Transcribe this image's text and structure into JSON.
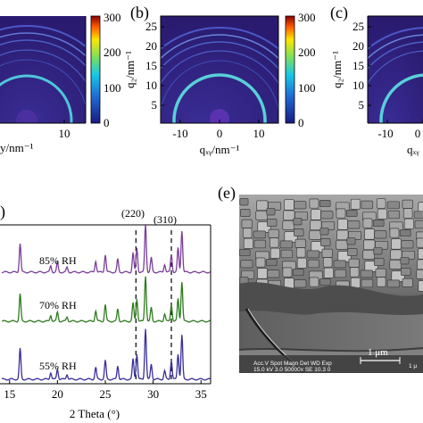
{
  "panels": {
    "a": {
      "label": "",
      "x_ticks": [
        "10"
      ],
      "x_axis_label_tail": "y/nm⁻¹",
      "colorbar_ticks": [
        "300",
        "200",
        "100",
        "0"
      ]
    },
    "b": {
      "label": "(b)",
      "y_label": "q₂/nm⁻¹",
      "y_ticks": [
        "25",
        "20",
        "15",
        "10",
        "5"
      ],
      "x_ticks": [
        "-10",
        "0",
        "10"
      ],
      "x_label": "qₓᵧ/nm⁻¹",
      "colorbar_ticks": [
        "300",
        "200",
        "100",
        "0"
      ]
    },
    "c": {
      "label": "(c)",
      "y_label": "q₂/nm⁻¹",
      "y_ticks": [
        "25",
        "20",
        "15",
        "10",
        "5"
      ],
      "x_ticks": [
        "-10",
        "0"
      ],
      "x_label": "qₓᵧ"
    },
    "d": {
      "label": ")",
      "peak_labels": [
        "(220)",
        "(310)"
      ],
      "x_label": "2 Theta (°)",
      "x_ticks": [
        "15",
        "20",
        "25",
        "30",
        "35"
      ]
    },
    "e": {
      "label": "(e)",
      "scale_bar": "1 μm",
      "scale_bar_2": "1 μ",
      "info_header": "Acc.V  Spot Magn    Det  WD  Exp",
      "info_values": "15.0 kV 3.0   50000x  SE   10.3  0"
    }
  },
  "chart_data": {
    "type": "line",
    "xlabel": "2 Theta (°)",
    "xlim": [
      14,
      36
    ],
    "series": [
      {
        "name": "85% RH",
        "color": "#7b3f9b"
      },
      {
        "name": "70% RH",
        "color": "#2e7d1e"
      },
      {
        "name": "55% RH",
        "color": "#3a2f9a"
      }
    ],
    "peaks_2theta": [
      16.1,
      19.3,
      20.0,
      21.0,
      24.0,
      25.0,
      26.3,
      27.9,
      28.3,
      29.2,
      29.8,
      31.2,
      31.9,
      32.6,
      33.0
    ],
    "reference_lines_2theta": [
      28.2,
      31.9
    ]
  },
  "colors": {
    "colorbar_top": "#8b0000",
    "colorbar_mid": "#ffff00",
    "colorbar_low": "#00ffff",
    "colorbar_bottom": "#1a1a80",
    "gisaxs_bg": "#2d1f7a"
  }
}
